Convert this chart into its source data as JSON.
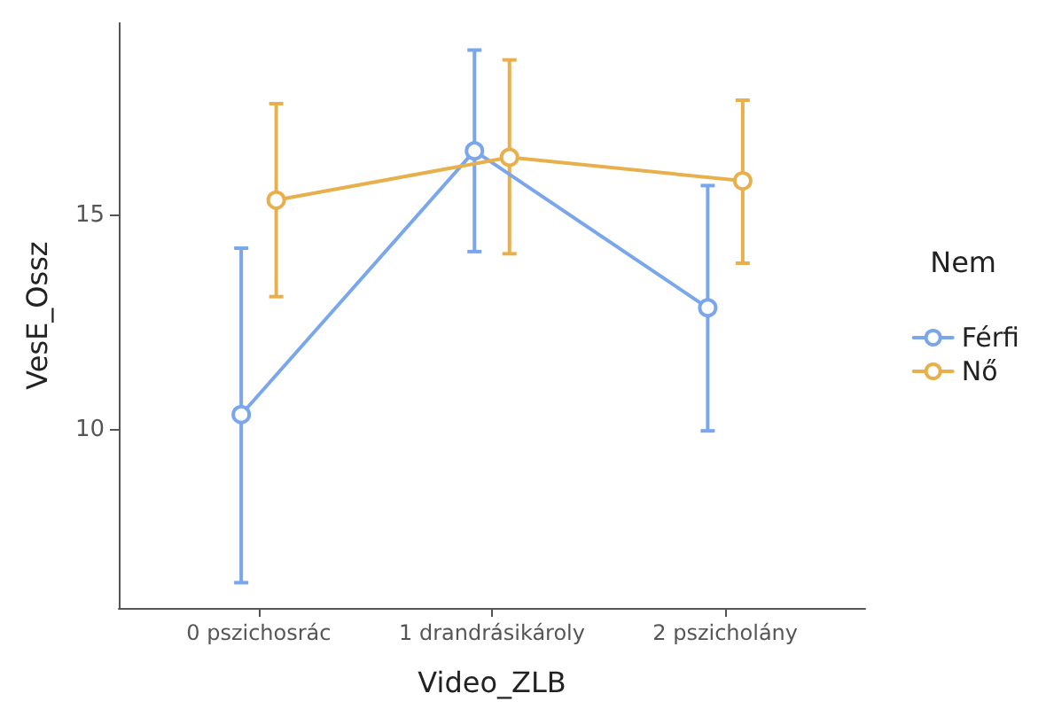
{
  "chart_data": {
    "type": "line",
    "xlabel": "Video_ZLB",
    "ylabel": "VesE_Ossz",
    "legend_title": "Nem",
    "categories": [
      "0 pszichosrác",
      "1 drandrásikároly",
      "2 pszicholány"
    ],
    "series": [
      {
        "name": "Férfi",
        "color": "#7aa6ec",
        "values": [
          10.35,
          16.5,
          12.84
        ],
        "errors": [
          [
            6.43,
            14.23
          ],
          [
            14.15,
            18.85
          ],
          [
            9.97,
            15.69
          ]
        ]
      },
      {
        "name": "Nő",
        "color": "#e8b04c",
        "values": [
          15.35,
          16.35,
          15.8
        ],
        "errors": [
          [
            13.1,
            17.6
          ],
          [
            14.1,
            18.62
          ],
          [
            13.88,
            17.68
          ]
        ]
      }
    ],
    "ylim": [
      5.84,
      19.48
    ],
    "yticks": [
      10,
      15
    ],
    "grid": false,
    "legend": "right",
    "marker": "circle",
    "line_style": "solid"
  }
}
